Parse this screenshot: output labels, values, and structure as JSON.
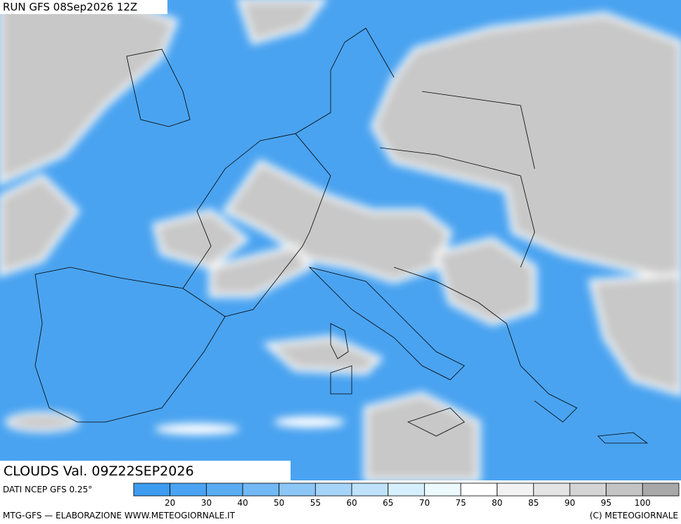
{
  "header": {
    "run": "RUN GFS 08Sep2026 12Z"
  },
  "title": "CLOUDS Val. 09Z22SEP2026",
  "footer": {
    "source": "DATI NCEP GFS 0.25°",
    "credit": "MTG-GFS — ELABORAZIONE WWW.METEOGIORNALE.IT",
    "copyright": "(C) METEOGIORNALE"
  },
  "legend": {
    "colors": [
      "#3d9bf0",
      "#4aa3f2",
      "#5aacf3",
      "#72b8f5",
      "#8cc6f7",
      "#a6d4f8",
      "#bfe2fa",
      "#d6effc",
      "#ecfafe",
      "#ffffff",
      "#f2f2f2",
      "#e4e4e4",
      "#d4d4d4",
      "#c4c4c4",
      "#a8a8a8"
    ],
    "labels": [
      20,
      30,
      40,
      50,
      55,
      60,
      65,
      70,
      75,
      80,
      85,
      90,
      95,
      100
    ]
  }
}
